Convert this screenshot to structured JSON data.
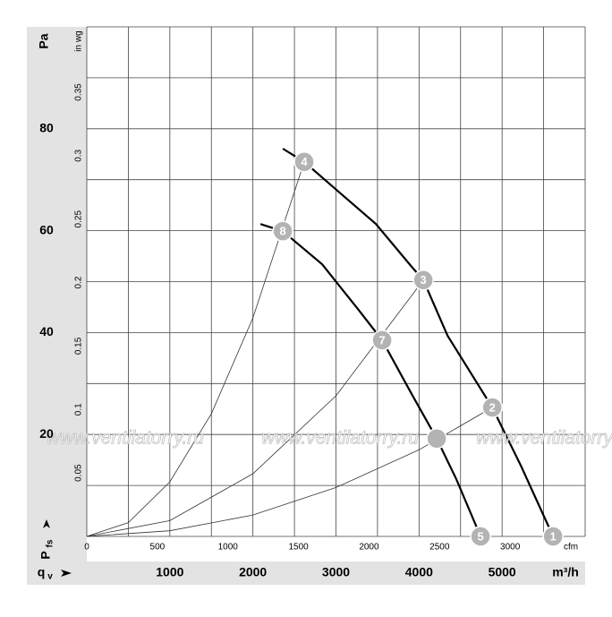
{
  "chart_data": {
    "type": "line",
    "y_label": "Pa",
    "y2_label": "in wg",
    "y_axis_title": "P",
    "y_axis_sub": "fs",
    "x_axis_title": "q",
    "x_axis_sub": "v",
    "x_label": "m³/h",
    "x2_label": "cfm",
    "xlim": [
      0,
      6000
    ],
    "xticks": [
      1000,
      2000,
      3000,
      4000,
      5000
    ],
    "xgrid": [
      0,
      500,
      1000,
      1500,
      2000,
      2500,
      3000,
      3500,
      4000,
      4500,
      5000,
      5500,
      6000
    ],
    "x2lim": [
      0,
      3531.5
    ],
    "x2ticks": [
      0,
      500,
      1000,
      1500,
      2000,
      2500,
      3000
    ],
    "ylim": [
      0,
      100
    ],
    "yticks": [
      20,
      40,
      60,
      80
    ],
    "ygrid": [
      0,
      10,
      20,
      30,
      40,
      50,
      60,
      70,
      80,
      90,
      100
    ],
    "y2lim": [
      0,
      0.4015
    ],
    "y2ticks": [
      0.05,
      0.1,
      0.15,
      0.2,
      0.25,
      0.3,
      0.35
    ],
    "series": [
      {
        "color": "#000000",
        "width": 2.2,
        "x": [
          2360,
          2618,
          3481,
          3912,
          4052,
          4343,
          4882,
          5226,
          5614
        ],
        "values": [
          76.1,
          73.5,
          61.3,
          52.9,
          50.3,
          39.4,
          25.3,
          13.9,
          0
        ]
      },
      {
        "color": "#000000",
        "width": 2.2,
        "x": [
          2091,
          2360,
          2834,
          3265,
          3556,
          3912,
          4213,
          4450,
          4741
        ],
        "values": [
          61.3,
          59.9,
          53.4,
          44.6,
          38.5,
          27.9,
          19.2,
          11.2,
          0
        ]
      },
      {
        "color": "#333333",
        "width": 0.8,
        "x": [
          0,
          500,
          1000,
          1500,
          2000,
          2618
        ],
        "values": [
          0,
          2.7,
          10.7,
          24.1,
          42.9,
          73.5
        ]
      },
      {
        "color": "#333333",
        "width": 0.8,
        "x": [
          0,
          1000,
          2000,
          3000,
          4052
        ],
        "values": [
          0,
          3.1,
          12.3,
          27.6,
          50.3
        ]
      },
      {
        "color": "#333333",
        "width": 0.8,
        "x": [
          0,
          1000,
          2000,
          3000,
          4000,
          4882
        ],
        "values": [
          0,
          1.1,
          4.2,
          9.6,
          17.0,
          25.3
        ]
      }
    ],
    "points": [
      {
        "label": "1",
        "x": 5614,
        "y": 0
      },
      {
        "label": "2",
        "x": 4882,
        "y": 25.3
      },
      {
        "label": "3",
        "x": 4052,
        "y": 50.3
      },
      {
        "label": "4",
        "x": 2618,
        "y": 73.5
      },
      {
        "label": "5",
        "x": 4741,
        "y": 0
      },
      {
        "x": 4213,
        "y": 19.2
      },
      {
        "label": "7",
        "x": 3556,
        "y": 38.5
      },
      {
        "label": "8",
        "x": 2360,
        "y": 59.9
      }
    ],
    "watermark": "www.ventilatorry.ru"
  }
}
